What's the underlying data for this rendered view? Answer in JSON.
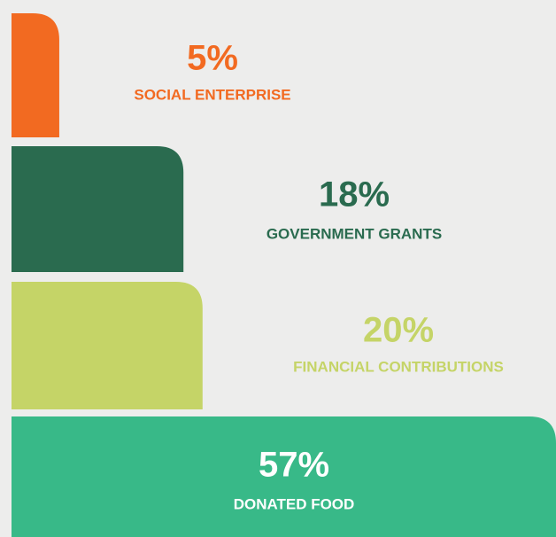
{
  "chart_data": {
    "type": "bar",
    "orientation": "horizontal",
    "categories": [
      "SOCIAL ENTERPRISE",
      "GOVERNMENT GRANTS",
      "FINANCIAL CONTRIBUTIONS",
      "DONATED FOOD"
    ],
    "values": [
      5,
      18,
      20,
      57
    ],
    "value_labels": [
      "5%",
      "18%",
      "20%",
      "57%"
    ],
    "colors": [
      "#f26a21",
      "#2a6b4f",
      "#c5d467",
      "#38b988"
    ]
  }
}
